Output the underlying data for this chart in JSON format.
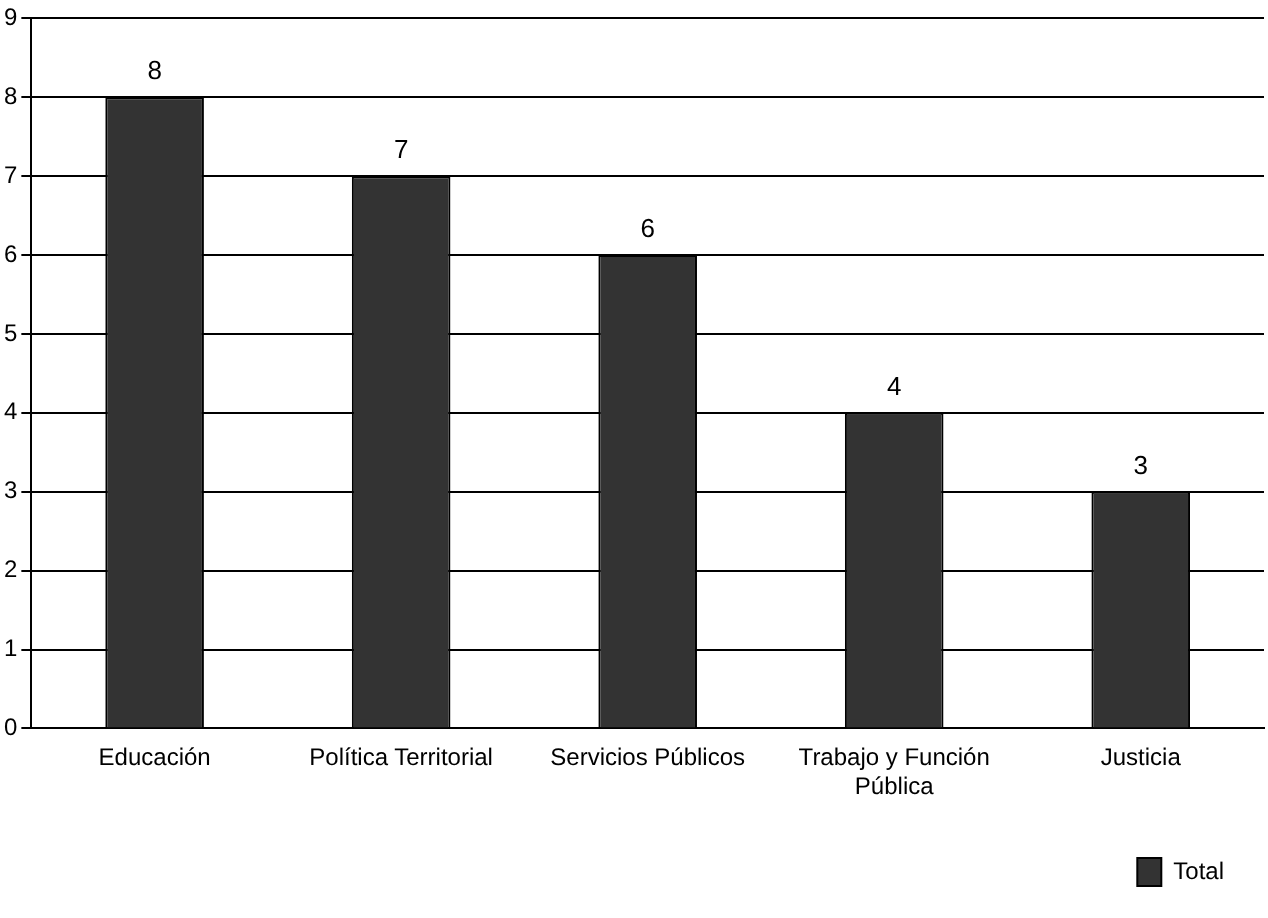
{
  "chart_data": {
    "type": "bar",
    "categories": [
      "Educación",
      "Política Territorial",
      "Servicios Públicos",
      "Trabajo y Función Pública",
      "Justicia"
    ],
    "series": [
      {
        "name": "Total",
        "color": "#333333",
        "values": [
          8,
          7,
          6,
          4,
          3
        ]
      }
    ],
    "ylim": [
      0,
      9
    ],
    "yticks": [
      0,
      1,
      2,
      3,
      4,
      5,
      6,
      7,
      8,
      9
    ],
    "grid": "y",
    "legend": "bottom right",
    "data_labels": true
  }
}
